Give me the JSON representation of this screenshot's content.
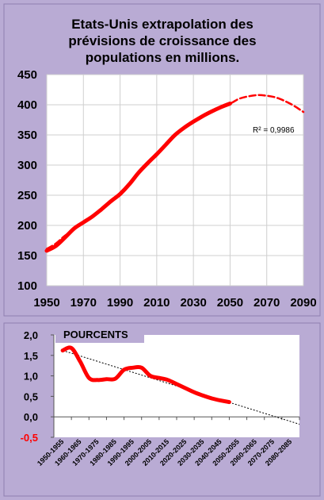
{
  "chart_data": [
    {
      "type": "line",
      "title": "Etats-Unis extrapolation des prévisions de croissance des populations  en millions.",
      "title_lines": [
        "Etats-Unis extrapolation des",
        "prévisions de croissance des",
        "populations  en millions."
      ],
      "xlim": [
        1950,
        2090
      ],
      "ylim": [
        100,
        450
      ],
      "x_ticks": [
        1950,
        1970,
        1990,
        2010,
        2030,
        2050,
        2070,
        2090
      ],
      "y_ticks": [
        100,
        150,
        200,
        250,
        300,
        350,
        400,
        450
      ],
      "grid": true,
      "series": [
        {
          "style": "solid",
          "color": "#ff0000",
          "x": [
            1950,
            1955,
            1960,
            1965,
            1970,
            1975,
            1980,
            1985,
            1990,
            1995,
            2000,
            2005,
            2010,
            2015,
            2020,
            2025,
            2030,
            2035,
            2040,
            2045,
            2050
          ],
          "y": [
            158,
            166,
            180,
            195,
            205,
            215,
            227,
            240,
            252,
            268,
            287,
            303,
            318,
            334,
            350,
            362,
            372,
            381,
            389,
            396,
            402
          ]
        },
        {
          "style": "dashed",
          "color": "#ff0000",
          "x": [
            1950,
            1955,
            1960,
            1970,
            1980,
            1990,
            2000,
            2010,
            2020,
            2030,
            2040,
            2050,
            2055,
            2060,
            2065,
            2070,
            2075,
            2080,
            2085,
            2090
          ],
          "y": [
            161,
            170,
            183,
            205,
            227,
            252,
            286,
            318,
            349,
            372,
            390,
            402,
            410,
            414,
            416,
            415,
            412,
            406,
            398,
            388
          ]
        }
      ],
      "annotation": "R² = 0,9986"
    },
    {
      "type": "line",
      "box_title": "POURCENTS",
      "ylim": [
        -0.5,
        2.0
      ],
      "y_tick_labels": [
        "2,0",
        "1,5",
        "1,0",
        "0,5",
        "0,0",
        "-0,5"
      ],
      "y_ticks": [
        2.0,
        1.5,
        1.0,
        0.5,
        0.0,
        -0.5
      ],
      "categories": [
        "1950-1955",
        "1960-1965",
        "1970-1975",
        "1980-1985",
        "1990-1995",
        "2000-2005",
        "2010-2015",
        "2020-2025",
        "2030-2035",
        "2040-2045",
        "2050-2055",
        "2060-2065",
        "2070-2075",
        "2080-2085"
      ],
      "series": [
        {
          "style": "solid",
          "color": "#ff0000",
          "x": [
            0,
            0.5,
            1,
            1.5,
            2,
            2.5,
            3,
            3.5,
            4,
            4.5,
            5,
            5.5,
            6,
            6.5,
            7,
            7.5,
            8,
            8.5,
            9,
            9.5
          ],
          "y": [
            1.62,
            1.68,
            1.35,
            0.95,
            0.9,
            0.92,
            0.93,
            1.15,
            1.2,
            1.2,
            1.0,
            0.95,
            0.9,
            0.8,
            0.7,
            0.6,
            0.52,
            0.45,
            0.4,
            0.36
          ]
        },
        {
          "style": "dotted-trend",
          "color": "#000000",
          "x": [
            0,
            13.5
          ],
          "y": [
            1.62,
            -0.18
          ]
        }
      ]
    }
  ]
}
